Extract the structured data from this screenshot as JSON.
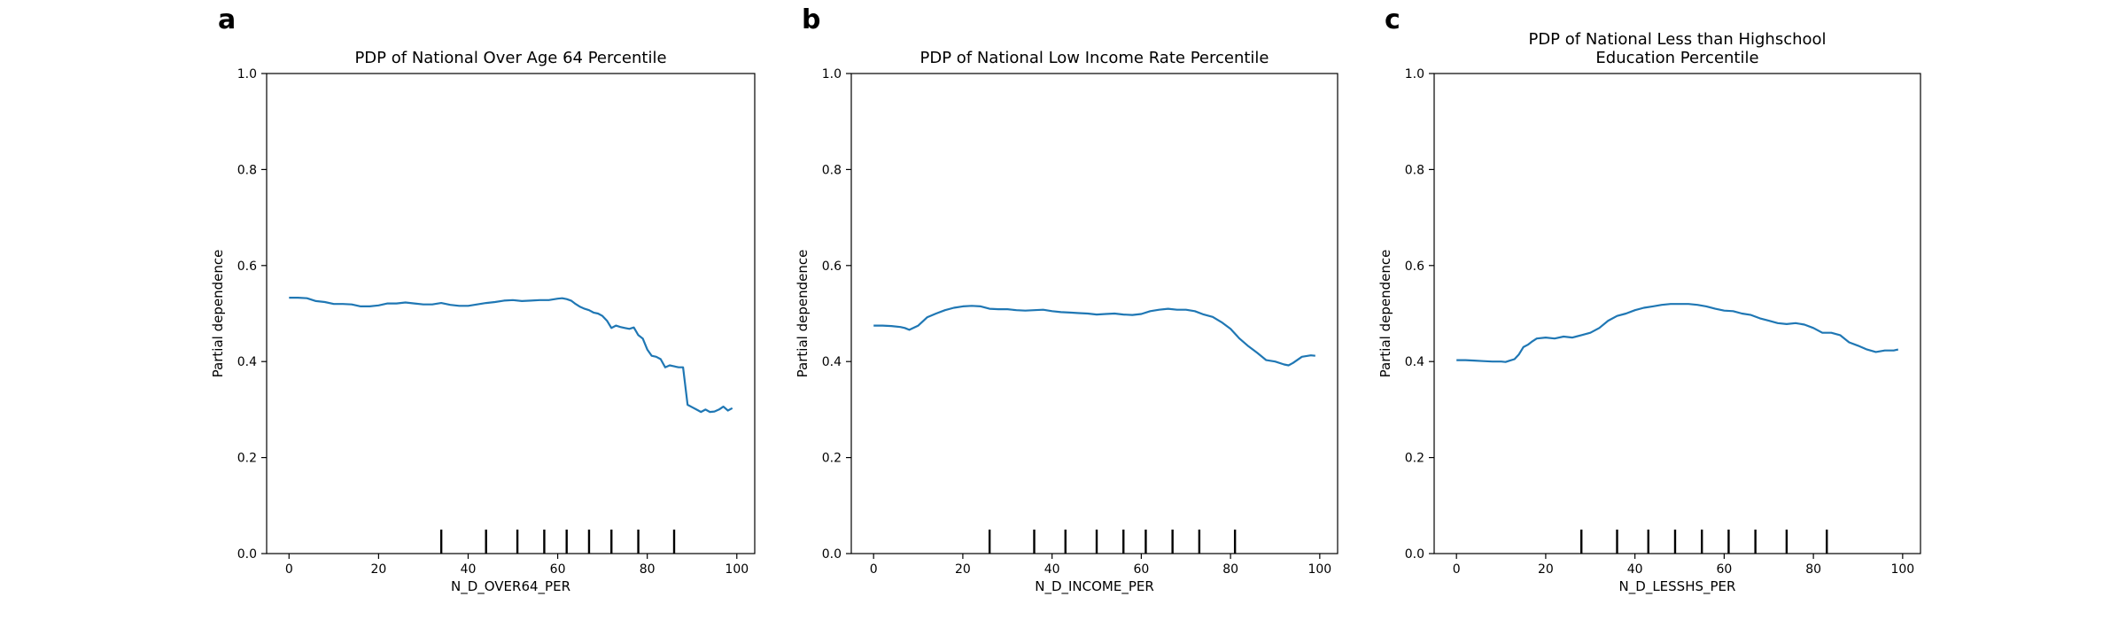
{
  "colors": {
    "series": "#1f77b4",
    "axes": "#000000",
    "background": "#ffffff"
  },
  "chart_data": [
    {
      "panel": "a",
      "type": "line",
      "title_lines": [
        "PDP of National Over Age 64 Percentile"
      ],
      "xlabel": "N_D_OVER64_PER",
      "ylabel": "Partial dependence",
      "xlim": [
        -5,
        104
      ],
      "ylim": [
        0,
        1
      ],
      "xticks": [
        0,
        20,
        40,
        60,
        80,
        100
      ],
      "yticks": [
        0.0,
        0.2,
        0.4,
        0.6,
        0.8,
        1.0
      ],
      "ytick_labels": [
        "0.0",
        "0.2",
        "0.4",
        "0.6",
        "0.8",
        "1.0"
      ],
      "deciles": [
        34,
        44,
        51,
        57,
        62,
        67,
        72,
        78,
        86
      ],
      "deciles_height": 0.05,
      "series": [
        {
          "x": [
            0,
            2,
            4,
            6,
            8,
            10,
            12,
            14,
            16,
            18,
            20,
            22,
            24,
            26,
            28,
            30,
            32,
            34,
            36,
            38,
            40,
            42,
            44,
            46,
            48,
            50,
            52,
            54,
            56,
            58,
            60,
            61,
            62,
            63,
            64,
            65,
            66,
            67,
            68,
            69,
            70,
            71,
            72,
            73,
            74,
            75,
            76,
            77,
            78,
            79,
            80,
            81,
            82,
            83,
            84,
            85,
            86,
            87,
            88,
            89,
            90,
            91,
            92,
            93,
            94,
            95,
            96,
            97,
            98,
            99
          ],
          "y": [
            0.533,
            0.533,
            0.532,
            0.526,
            0.524,
            0.52,
            0.52,
            0.519,
            0.515,
            0.515,
            0.517,
            0.521,
            0.521,
            0.523,
            0.521,
            0.519,
            0.519,
            0.522,
            0.518,
            0.516,
            0.516,
            0.519,
            0.522,
            0.524,
            0.527,
            0.528,
            0.526,
            0.527,
            0.528,
            0.528,
            0.531,
            0.532,
            0.53,
            0.527,
            0.52,
            0.514,
            0.51,
            0.507,
            0.502,
            0.5,
            0.495,
            0.485,
            0.47,
            0.475,
            0.472,
            0.47,
            0.468,
            0.471,
            0.455,
            0.448,
            0.425,
            0.412,
            0.41,
            0.405,
            0.388,
            0.392,
            0.39,
            0.388,
            0.388,
            0.31,
            0.305,
            0.3,
            0.295,
            0.3,
            0.295,
            0.296,
            0.3,
            0.306,
            0.298,
            0.303
          ]
        }
      ]
    },
    {
      "panel": "b",
      "type": "line",
      "title_lines": [
        "PDP of National Low Income Rate Percentile"
      ],
      "xlabel": "N_D_INCOME_PER",
      "ylabel": "Partial dependence",
      "xlim": [
        -5,
        104
      ],
      "ylim": [
        0,
        1
      ],
      "xticks": [
        0,
        20,
        40,
        60,
        80,
        100
      ],
      "yticks": [
        0.0,
        0.2,
        0.4,
        0.6,
        0.8,
        1.0
      ],
      "ytick_labels": [
        "0.0",
        "0.2",
        "0.4",
        "0.6",
        "0.8",
        "1.0"
      ],
      "deciles": [
        26,
        36,
        43,
        50,
        56,
        61,
        67,
        73,
        81
      ],
      "deciles_height": 0.05,
      "series": [
        {
          "x": [
            0,
            2,
            4,
            6,
            7,
            8,
            10,
            12,
            14,
            16,
            18,
            20,
            22,
            24,
            26,
            28,
            30,
            32,
            34,
            36,
            38,
            40,
            42,
            44,
            46,
            48,
            50,
            52,
            54,
            56,
            58,
            60,
            62,
            64,
            66,
            68,
            70,
            72,
            74,
            76,
            78,
            80,
            82,
            84,
            86,
            88,
            90,
            92,
            93,
            94,
            96,
            98,
            99
          ],
          "y": [
            0.475,
            0.475,
            0.474,
            0.472,
            0.47,
            0.466,
            0.475,
            0.492,
            0.5,
            0.507,
            0.512,
            0.515,
            0.516,
            0.515,
            0.51,
            0.509,
            0.509,
            0.507,
            0.506,
            0.507,
            0.508,
            0.505,
            0.503,
            0.502,
            0.501,
            0.5,
            0.498,
            0.499,
            0.5,
            0.498,
            0.497,
            0.499,
            0.505,
            0.508,
            0.51,
            0.508,
            0.508,
            0.505,
            0.498,
            0.493,
            0.482,
            0.468,
            0.448,
            0.432,
            0.418,
            0.403,
            0.4,
            0.394,
            0.392,
            0.397,
            0.41,
            0.413,
            0.412
          ]
        }
      ]
    },
    {
      "panel": "c",
      "type": "line",
      "title_lines": [
        "PDP of National Less than Highschool",
        "Education Percentile"
      ],
      "xlabel": "N_D_LESSHS_PER",
      "ylabel": "Partial dependence",
      "xlim": [
        -5,
        104
      ],
      "ylim": [
        0,
        1
      ],
      "xticks": [
        0,
        20,
        40,
        60,
        80,
        100
      ],
      "yticks": [
        0.0,
        0.2,
        0.4,
        0.6,
        0.8,
        1.0
      ],
      "ytick_labels": [
        "0.0",
        "0.2",
        "0.4",
        "0.6",
        "0.8",
        "1.0"
      ],
      "deciles": [
        28,
        36,
        43,
        49,
        55,
        61,
        67,
        74,
        83
      ],
      "deciles_height": 0.05,
      "series": [
        {
          "x": [
            0,
            2,
            4,
            6,
            8,
            10,
            11,
            12,
            13,
            14,
            15,
            16,
            17,
            18,
            20,
            22,
            24,
            26,
            28,
            30,
            32,
            34,
            36,
            38,
            40,
            42,
            44,
            46,
            48,
            50,
            52,
            54,
            56,
            58,
            60,
            62,
            64,
            66,
            68,
            70,
            72,
            74,
            76,
            78,
            80,
            82,
            84,
            86,
            88,
            90,
            92,
            94,
            96,
            98,
            99
          ],
          "y": [
            0.403,
            0.403,
            0.402,
            0.401,
            0.4,
            0.4,
            0.399,
            0.402,
            0.405,
            0.415,
            0.43,
            0.435,
            0.442,
            0.448,
            0.45,
            0.448,
            0.452,
            0.45,
            0.455,
            0.46,
            0.47,
            0.485,
            0.495,
            0.5,
            0.507,
            0.512,
            0.515,
            0.518,
            0.52,
            0.52,
            0.52,
            0.518,
            0.515,
            0.51,
            0.506,
            0.505,
            0.5,
            0.497,
            0.49,
            0.485,
            0.48,
            0.478,
            0.48,
            0.477,
            0.47,
            0.46,
            0.46,
            0.455,
            0.44,
            0.433,
            0.425,
            0.42,
            0.423,
            0.423,
            0.425
          ]
        }
      ]
    }
  ]
}
